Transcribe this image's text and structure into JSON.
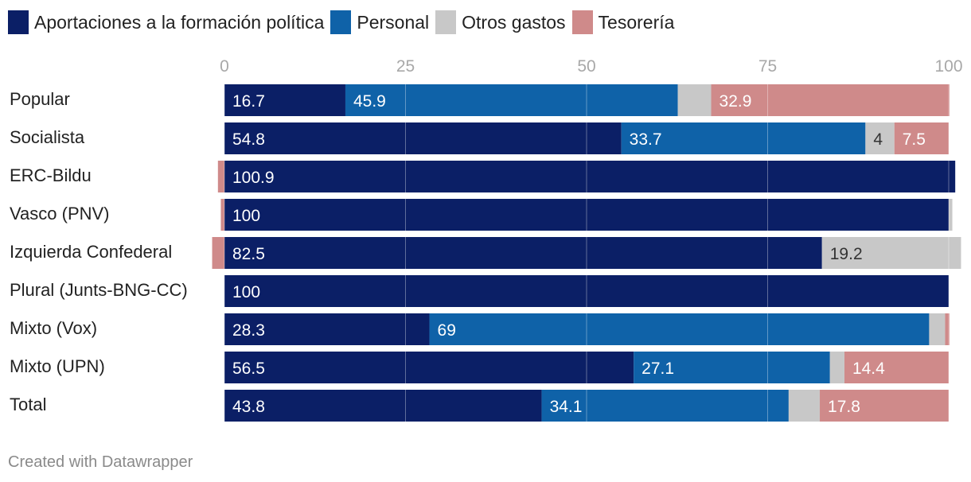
{
  "chart_data": {
    "type": "bar",
    "orientation": "horizontal",
    "stacked": true,
    "xlim": [
      0,
      100
    ],
    "xticks": [
      0,
      25,
      50,
      75,
      100
    ],
    "grid": true,
    "legend_position": "top",
    "categories": [
      "Popular",
      "Socialista",
      "ERC-Bildu",
      "Vasco (PNV)",
      "Izquierda Confederal",
      "Plural (Junts-BNG-CC)",
      "Mixto (Vox)",
      "Mixto (UPN)",
      "Total"
    ],
    "series": [
      {
        "name": "Aportaciones a la formación política",
        "color": "#0b1f66",
        "label_color": "#ffffff",
        "values": [
          16.7,
          54.8,
          100.9,
          100,
          82.5,
          100,
          28.3,
          56.5,
          43.8
        ],
        "labels": [
          "16.7",
          "54.8",
          "100.9",
          "100",
          "82.5",
          "100",
          "28.3",
          "56.5",
          "43.8"
        ]
      },
      {
        "name": "Personal",
        "color": "#0f62a8",
        "label_color": "#ffffff",
        "values": [
          45.9,
          33.7,
          0,
          0,
          0,
          0,
          69,
          27.1,
          34.1
        ],
        "labels": [
          "45.9",
          "33.7",
          "",
          "",
          "",
          "",
          "69",
          "27.1",
          "34.1"
        ]
      },
      {
        "name": "Otros gastos",
        "color": "#c8c8c8",
        "label_color": "#333333",
        "values": [
          4.6,
          4,
          0,
          0.5,
          19.2,
          0,
          2.2,
          2,
          4.3
        ],
        "labels": [
          "",
          "4",
          "",
          "",
          "19.2",
          "",
          "",
          "",
          ""
        ]
      },
      {
        "name": "Tesorería",
        "color": "#cf8a8a",
        "label_color": "#ffffff",
        "values": [
          32.9,
          7.5,
          -0.9,
          -0.5,
          -1.7,
          0,
          0.6,
          14.4,
          17.8
        ],
        "labels": [
          "32.9",
          "7.5",
          "",
          "",
          "",
          "",
          "",
          "14.4",
          "17.8"
        ]
      }
    ]
  },
  "footer": {
    "credit": "Created with Datawrapper"
  }
}
